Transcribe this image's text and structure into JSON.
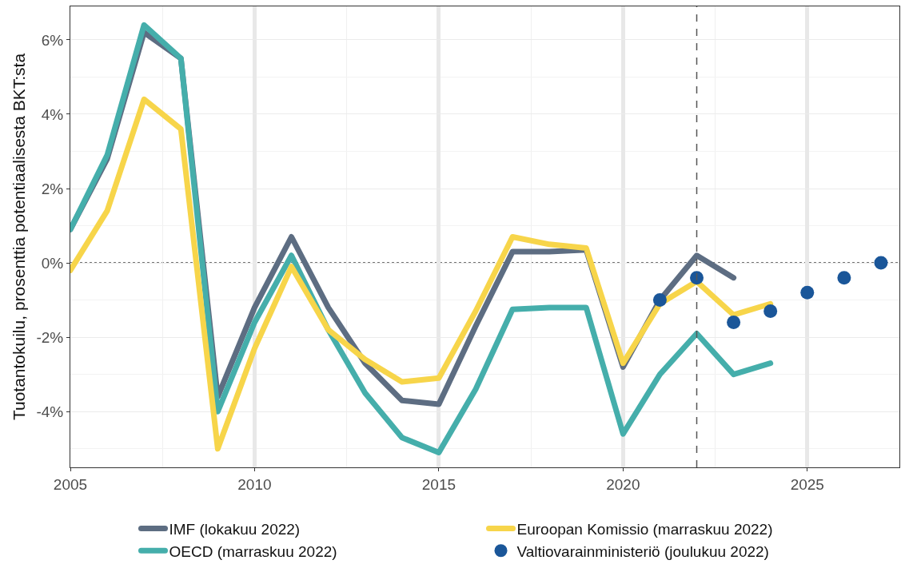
{
  "chart_data": {
    "type": "line",
    "ylabel": "Tuotantokuilu, prosenttia potentiaalisesta BKT:sta",
    "x": [
      2005,
      2006,
      2007,
      2008,
      2009,
      2010,
      2011,
      2012,
      2013,
      2014,
      2015,
      2016,
      2017,
      2018,
      2019,
      2020,
      2021,
      2022,
      2023,
      2024
    ],
    "series": [
      {
        "name": "IMF (lokakuu 2022)",
        "color": "#5d6d82",
        "values": [
          0.9,
          2.8,
          6.2,
          5.5,
          -3.6,
          -1.2,
          0.7,
          -1.2,
          -2.7,
          -3.7,
          -3.8,
          -1.7,
          0.3,
          0.3,
          0.35,
          -2.8,
          -1.0,
          0.2,
          -0.4,
          null
        ]
      },
      {
        "name": "OECD (marraskuu 2022)",
        "color": "#45aeab",
        "values": [
          0.9,
          2.9,
          6.4,
          5.5,
          -4.0,
          -1.6,
          0.2,
          -1.8,
          -3.5,
          -4.7,
          -5.1,
          -3.4,
          -1.25,
          -1.2,
          -1.2,
          -4.6,
          -3.0,
          -1.9,
          -3.0,
          -2.7
        ]
      },
      {
        "name": "Euroopan Komissio (marraskuu 2022)",
        "color": "#f7d54a",
        "values": [
          -0.2,
          1.4,
          4.4,
          3.6,
          -5.0,
          -2.3,
          -0.1,
          -1.8,
          -2.6,
          -3.2,
          -3.1,
          -1.3,
          0.7,
          0.5,
          0.4,
          -2.7,
          -1.1,
          -0.5,
          -1.4,
          -1.1
        ]
      },
      {
        "name": "Valtiovarainministeriö (joulukuu 2022)",
        "type": "scatter",
        "marker": "circle",
        "color": "#1a5699",
        "x": [
          2021,
          2022,
          2023,
          2024,
          2025,
          2026,
          2027
        ],
        "values": [
          -1.0,
          -0.4,
          -1.6,
          -1.3,
          -0.8,
          -0.4,
          0.0
        ]
      }
    ],
    "xlim": [
      2005,
      2027.5
    ],
    "xticks": [
      2005,
      2010,
      2015,
      2020,
      2025
    ],
    "ylim": [
      -5.5,
      6.9
    ],
    "yticks": [
      {
        "value": -4,
        "label": "-4%"
      },
      {
        "value": -2,
        "label": "-2%"
      },
      {
        "value": 0,
        "label": "0%"
      },
      {
        "value": 2,
        "label": "2%"
      },
      {
        "value": 4,
        "label": "4%"
      },
      {
        "value": 6,
        "label": "6%"
      }
    ],
    "ref_lines": [
      {
        "axis": "y",
        "value": 0,
        "color": "#444444",
        "line_style": "dotted"
      },
      {
        "axis": "x",
        "value": 2022,
        "color": "#555555",
        "line_style": "dashed"
      }
    ],
    "grid": true,
    "legend": "bottom"
  }
}
